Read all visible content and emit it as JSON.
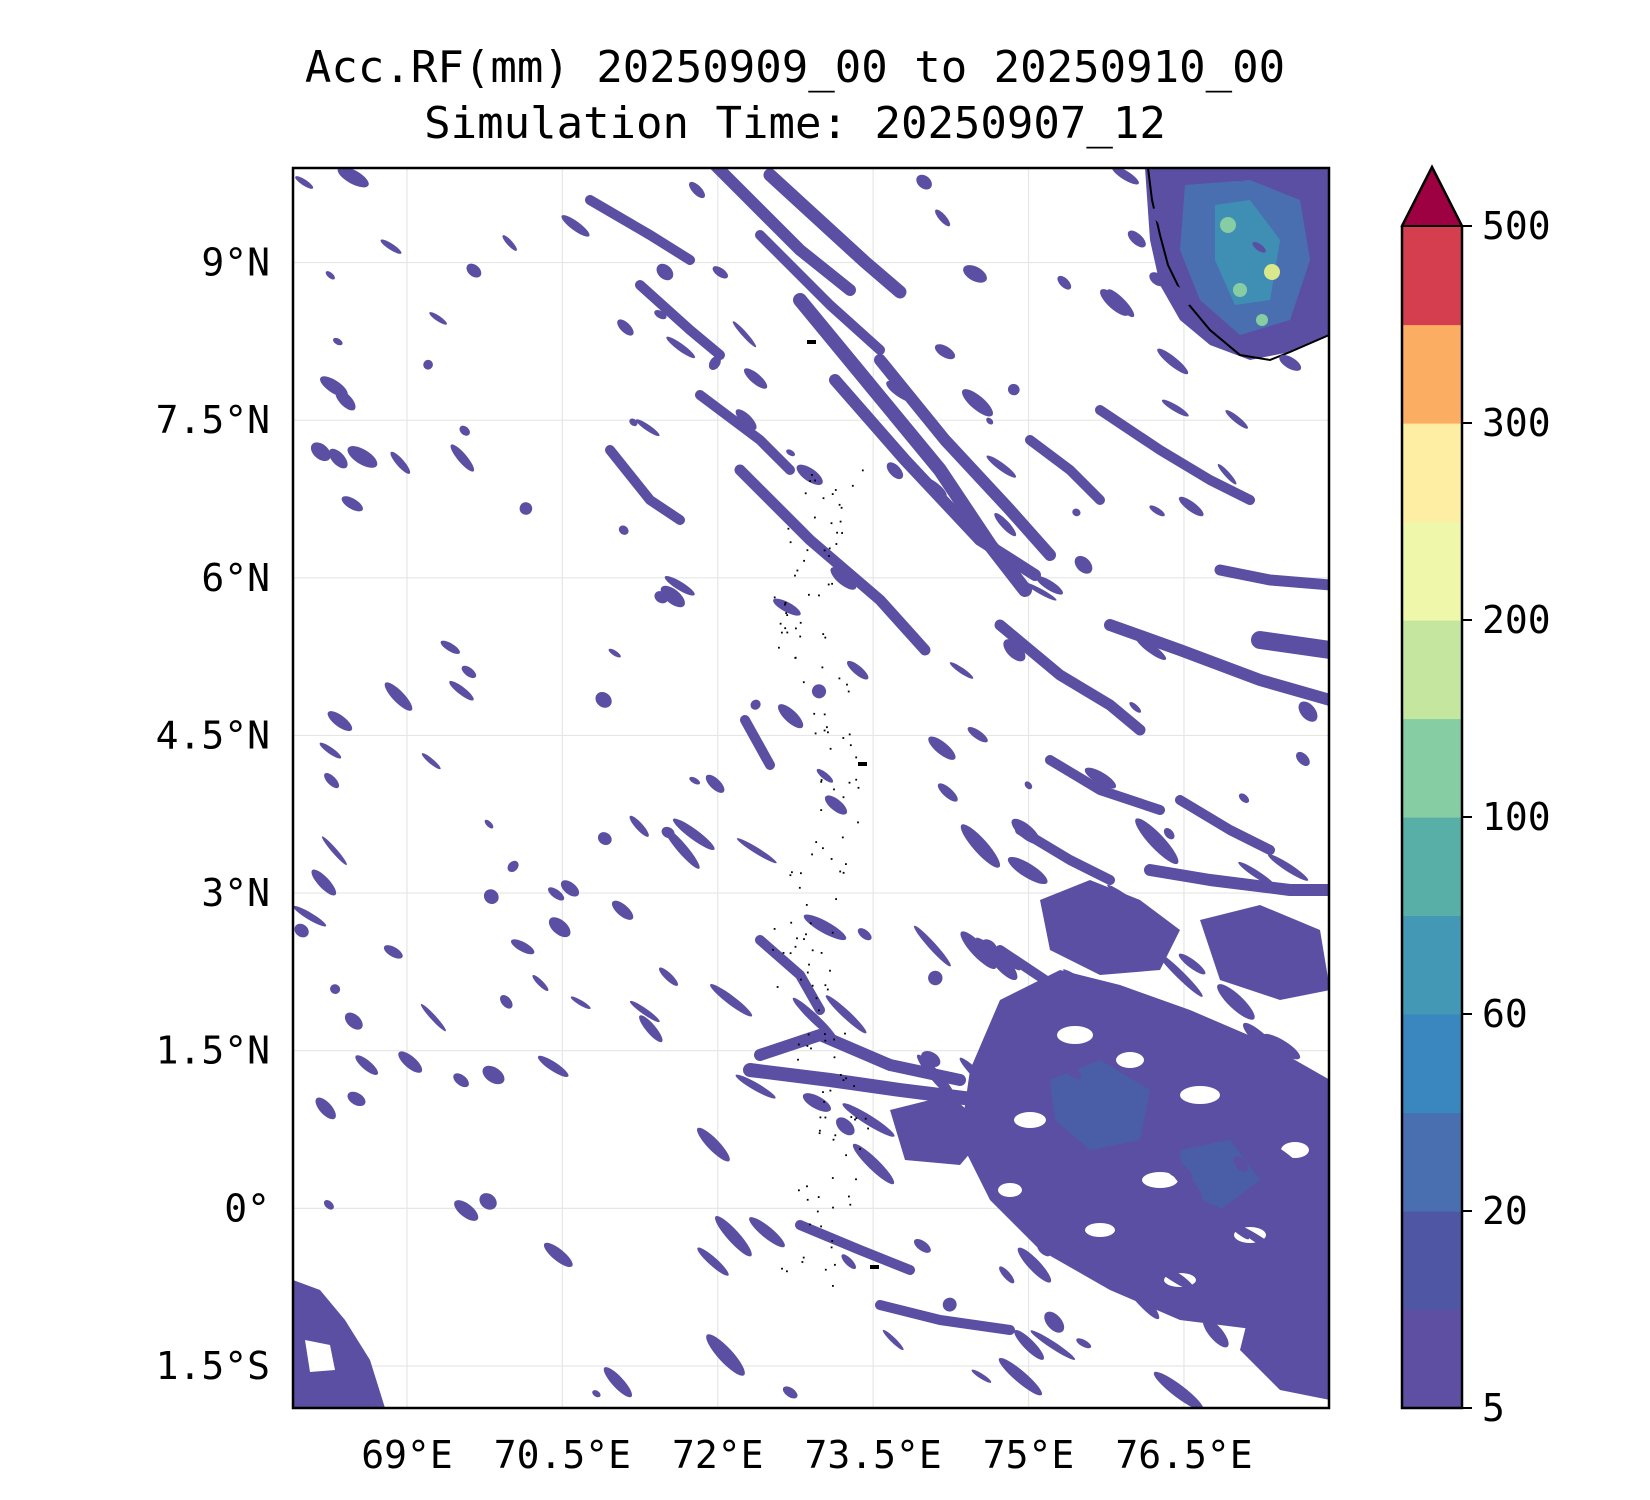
{
  "title_line1": "Acc.RF(mm) 20250909_00 to 20250910_00",
  "title_line2": "Simulation Time: 20250907_12",
  "map": {
    "lon_range": [
      67.9,
      77.9
    ],
    "lat_range": [
      -1.9,
      9.9
    ],
    "lon_ticks": [
      {
        "v": 69,
        "label": "69°E"
      },
      {
        "v": 70.5,
        "label": "70.5°E"
      },
      {
        "v": 72,
        "label": "72°E"
      },
      {
        "v": 73.5,
        "label": "73.5°E"
      },
      {
        "v": 75,
        "label": "75°E"
      },
      {
        "v": 76.5,
        "label": "76.5°E"
      }
    ],
    "lat_ticks": [
      {
        "v": 9,
        "label": "9°N"
      },
      {
        "v": 7.5,
        "label": "7.5°N"
      },
      {
        "v": 6,
        "label": "6°N"
      },
      {
        "v": 4.5,
        "label": "4.5°N"
      },
      {
        "v": 3,
        "label": "3°N"
      },
      {
        "v": 1.5,
        "label": "1.5°N"
      },
      {
        "v": 0,
        "label": "0°"
      },
      {
        "v": -1.5,
        "label": "1.5°S"
      }
    ],
    "rain_color": "#5a4fa2",
    "rain_color_mid": "#3f6ab0",
    "rain_color_high": "#5ab0a8",
    "rain_color_peak": "#d9e88a"
  },
  "colorbar": {
    "levels": [
      5,
      10,
      20,
      40,
      60,
      80,
      100,
      150,
      200,
      250,
      300,
      400,
      500
    ],
    "colors": [
      "#5e4fa2",
      "#4f57a5",
      "#4a6fb1",
      "#3a86bf",
      "#4398b6",
      "#58afa8",
      "#86cda3",
      "#c4e69e",
      "#eef7aa",
      "#fdeea3",
      "#fbad62",
      "#d53e4f"
    ],
    "extend_color": "#9e0142",
    "tick_labels": [
      {
        "v": 5,
        "label": "5"
      },
      {
        "v": 20,
        "label": "20"
      },
      {
        "v": 60,
        "label": "60"
      },
      {
        "v": 100,
        "label": "100"
      },
      {
        "v": 200,
        "label": "200"
      },
      {
        "v": 300,
        "label": "300"
      },
      {
        "v": 500,
        "label": "500"
      }
    ]
  }
}
